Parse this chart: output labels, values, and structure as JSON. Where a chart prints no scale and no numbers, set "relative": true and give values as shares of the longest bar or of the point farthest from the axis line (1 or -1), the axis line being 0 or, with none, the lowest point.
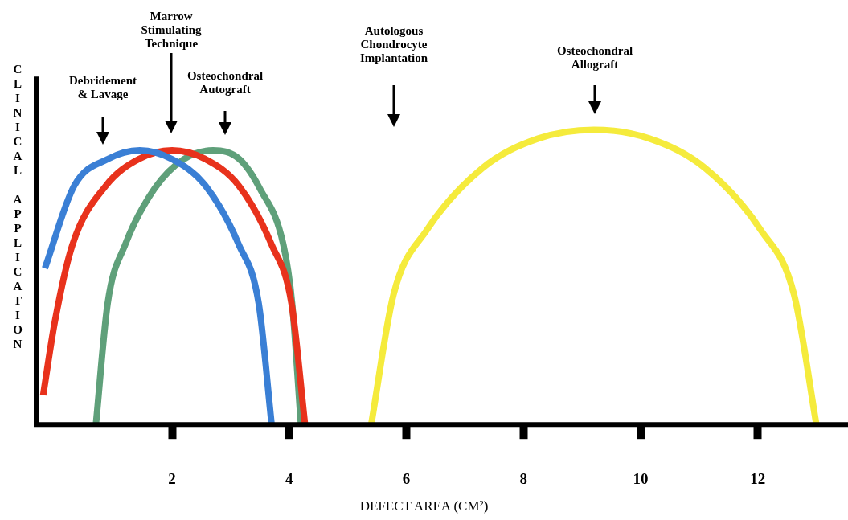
{
  "chart_data": {
    "type": "line",
    "relative": true,
    "xlabel": "DEFECT AREA (CM²)",
    "ylabel": "CLINICAL APPLICATION",
    "xlim": [
      -0.32,
      13.54
    ],
    "xticks": [
      2,
      4,
      6,
      8,
      10,
      12
    ],
    "legend": false,
    "grid": false,
    "marker": "none",
    "line_style": "solid",
    "series": [
      {
        "color": "#3a7fd5",
        "x": [
          -0.17,
          0.33,
          0.9,
          1.45,
          2.0,
          2.57,
          3.14,
          3.48,
          3.7
        ],
        "values": [
          0.53,
          0.81,
          0.9,
          0.93,
          0.9,
          0.81,
          0.61,
          0.41,
          0
        ]
      },
      {
        "color": "#e8321c",
        "x": [
          -0.2,
          0.0,
          0.3,
          0.87,
          1.43,
          2.0,
          2.57,
          3.14,
          3.7,
          4.04,
          4.27
        ],
        "values": [
          0.1,
          0.35,
          0.61,
          0.81,
          0.9,
          0.93,
          0.9,
          0.81,
          0.61,
          0.41,
          0
        ]
      },
      {
        "color": "#5fa07a",
        "x": [
          0.7,
          0.9,
          1.2,
          1.7,
          2.2,
          2.7,
          3.15,
          3.5,
          3.9,
          4.05,
          4.2
        ],
        "values": [
          0,
          0.41,
          0.61,
          0.8,
          0.9,
          0.93,
          0.9,
          0.8,
          0.61,
          0.41,
          0
        ]
      },
      {
        "color": "#f5eb3c",
        "x": [
          5.4,
          5.78,
          6.35,
          7.3,
          8.25,
          9.2,
          10.15,
          11.1,
          12.05,
          12.62,
          13.0
        ],
        "values": [
          0,
          0.44,
          0.66,
          0.87,
          0.97,
          1,
          0.97,
          0.87,
          0.66,
          0.44,
          0
        ]
      }
    ],
    "annotations": [
      "Debridement\n& Lavage",
      "Marrow\nStimulating\nTechnique",
      "Osteochondral\nAutograft",
      "Autologous\nChondrocyte\nImplantation",
      "Osteochondral\nAllograft"
    ]
  }
}
